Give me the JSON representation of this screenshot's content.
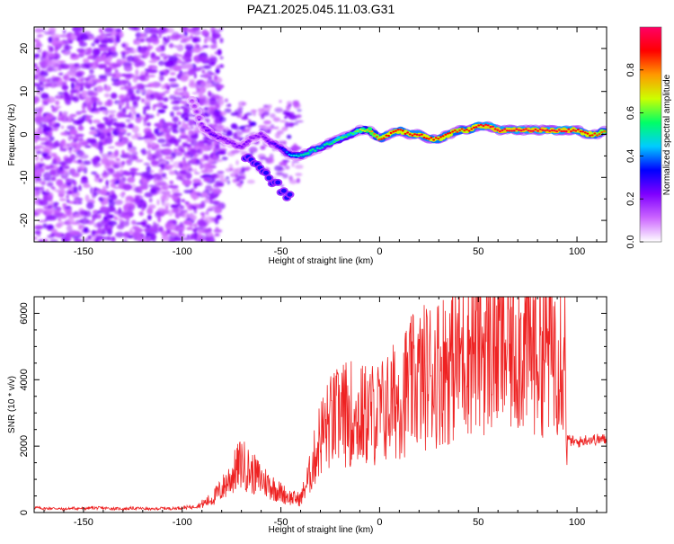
{
  "title": "PAZ1.2025.045.11.03.G31",
  "chart_data": [
    {
      "type": "heatmap",
      "xlabel": "Height of straight line (km)",
      "ylabel": "Frequency (Hz)",
      "xlim": [
        -175,
        115
      ],
      "ylim": [
        -25,
        25
      ],
      "xticks": [
        -150,
        -100,
        -50,
        0,
        50,
        100
      ],
      "yticks": [
        -20,
        -10,
        0,
        10,
        20
      ],
      "colorbar": {
        "label": "Normalized spectral amplitude",
        "range": [
          0.0,
          1.0
        ],
        "ticks": [
          0.0,
          0.2,
          0.4,
          0.6,
          0.8
        ],
        "colors": [
          "#ffffff",
          "#cc66ff",
          "#7f00ff",
          "#0000ff",
          "#00ccff",
          "#00ff66",
          "#ccff00",
          "#ff9900",
          "#ff0000",
          "#ff0066"
        ]
      },
      "ridge": {
        "x": [
          -95,
          -90,
          -85,
          -80,
          -75,
          -70,
          -65,
          -60,
          -55,
          -50,
          -45,
          -40,
          -35,
          -30,
          -25,
          -20,
          -15,
          -10,
          -5,
          0,
          5,
          10,
          15,
          20,
          25,
          30,
          35,
          40,
          45,
          50,
          55,
          60,
          65,
          70,
          75,
          80,
          85,
          90,
          95,
          100,
          105,
          110,
          115
        ],
        "freq": [
          8,
          2,
          0,
          -1,
          -2,
          -3,
          -1,
          0,
          -2,
          -3,
          -5,
          -5,
          -4,
          -3,
          -2,
          -1,
          0,
          1,
          1,
          -1,
          0,
          1,
          0,
          0,
          -1,
          -1,
          0,
          1,
          1,
          2,
          2,
          1,
          1,
          1,
          1,
          1,
          1,
          1,
          1,
          1,
          0,
          0,
          1
        ],
        "amplitude": [
          0.15,
          0.2,
          0.25,
          0.22,
          0.2,
          0.22,
          0.2,
          0.2,
          0.25,
          0.3,
          0.45,
          0.5,
          0.55,
          0.5,
          0.55,
          0.6,
          0.55,
          0.65,
          0.75,
          0.85,
          0.9,
          0.88,
          0.9,
          0.92,
          0.9,
          0.88,
          0.9,
          0.85,
          0.88,
          0.92,
          0.95,
          0.95,
          0.95,
          0.95,
          0.95,
          0.95,
          0.95,
          0.95,
          0.95,
          0.92,
          0.9,
          0.85,
          0.8
        ]
      }
    },
    {
      "type": "line",
      "xlabel": "Height of straight line (km)",
      "ylabel": "SNR (10 * v/v)",
      "xlim": [
        -175,
        115
      ],
      "ylim": [
        0,
        6500
      ],
      "xticks": [
        -150,
        -100,
        -50,
        0,
        50,
        100
      ],
      "yticks": [
        0,
        2000,
        4000,
        6000
      ],
      "color": "#ee2222",
      "series": [
        {
          "x": [
            -175,
            -170,
            -165,
            -160,
            -155,
            -150,
            -145,
            -140,
            -135,
            -130,
            -125,
            -120,
            -115,
            -110,
            -105,
            -100,
            -95,
            -90,
            -85,
            -80,
            -75,
            -70,
            -65,
            -60,
            -55,
            -50,
            -45,
            -40,
            -35,
            -30,
            -25,
            -20,
            -15,
            -10,
            -5,
            0,
            5,
            10,
            15,
            20,
            25,
            30,
            35,
            40,
            45,
            50,
            55,
            60,
            65,
            70,
            75,
            80,
            85,
            90,
            94,
            95,
            100,
            105,
            110,
            115
          ],
          "values": [
            150,
            120,
            130,
            100,
            130,
            120,
            140,
            130,
            120,
            110,
            130,
            120,
            100,
            130,
            120,
            150,
            160,
            250,
            400,
            700,
            1100,
            1500,
            1200,
            1000,
            800,
            600,
            450,
            400,
            1200,
            2300,
            2700,
            2900,
            3000,
            2900,
            2950,
            3000,
            3200,
            3500,
            3800,
            4000,
            4200,
            4300,
            4500,
            4700,
            5000,
            5100,
            5000,
            5000,
            4900,
            5100,
            5000,
            5000,
            5000,
            5000,
            4900,
            2200,
            2100,
            2200,
            2200,
            2200
          ]
        }
      ]
    }
  ]
}
